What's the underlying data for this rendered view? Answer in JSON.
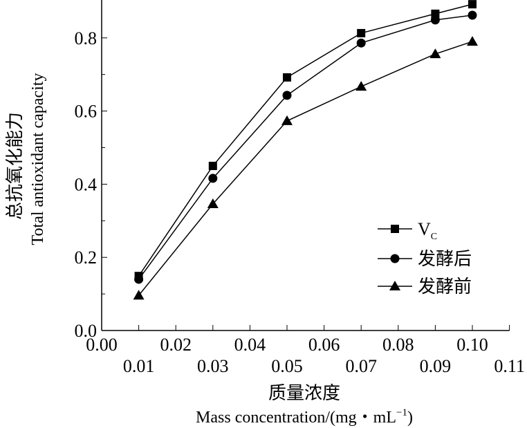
{
  "chart_data": {
    "type": "line",
    "title": "",
    "xlabel_cn": "质量浓度",
    "xlabel_en": "Mass concentration/(mg・mL",
    "xlabel_en_sup": "−1",
    "xlabel_en_end": ")",
    "ylabel_cn": "总抗氧化能力",
    "ylabel_en": "Total antioxidant capacity",
    "xlim": [
      0,
      0.11
    ],
    "ylim": [
      0,
      0.9
    ],
    "x_ticks_upper": [
      "0.00",
      "0.02",
      "0.04",
      "0.06",
      "0.08",
      "0.10"
    ],
    "x_ticks_lower": [
      "0.01",
      "0.03",
      "0.05",
      "0.07",
      "0.09",
      "0.11"
    ],
    "y_ticks": [
      "0.0",
      "0.2",
      "0.4",
      "0.6",
      "0.8"
    ],
    "legend_position": "right-middle",
    "x": [
      0.01,
      0.03,
      0.05,
      0.07,
      0.09,
      0.1
    ],
    "series": [
      {
        "name": "V",
        "name_sub": "C",
        "marker": "square",
        "values": [
          0.149,
          0.45,
          0.692,
          0.813,
          0.866,
          0.892
        ]
      },
      {
        "name": "发酵后",
        "marker": "circle",
        "values": [
          0.14,
          0.416,
          0.643,
          0.786,
          0.849,
          0.862
        ]
      },
      {
        "name": "发酵前",
        "marker": "triangle",
        "values": [
          0.096,
          0.346,
          0.573,
          0.667,
          0.756,
          0.79
        ]
      }
    ]
  }
}
